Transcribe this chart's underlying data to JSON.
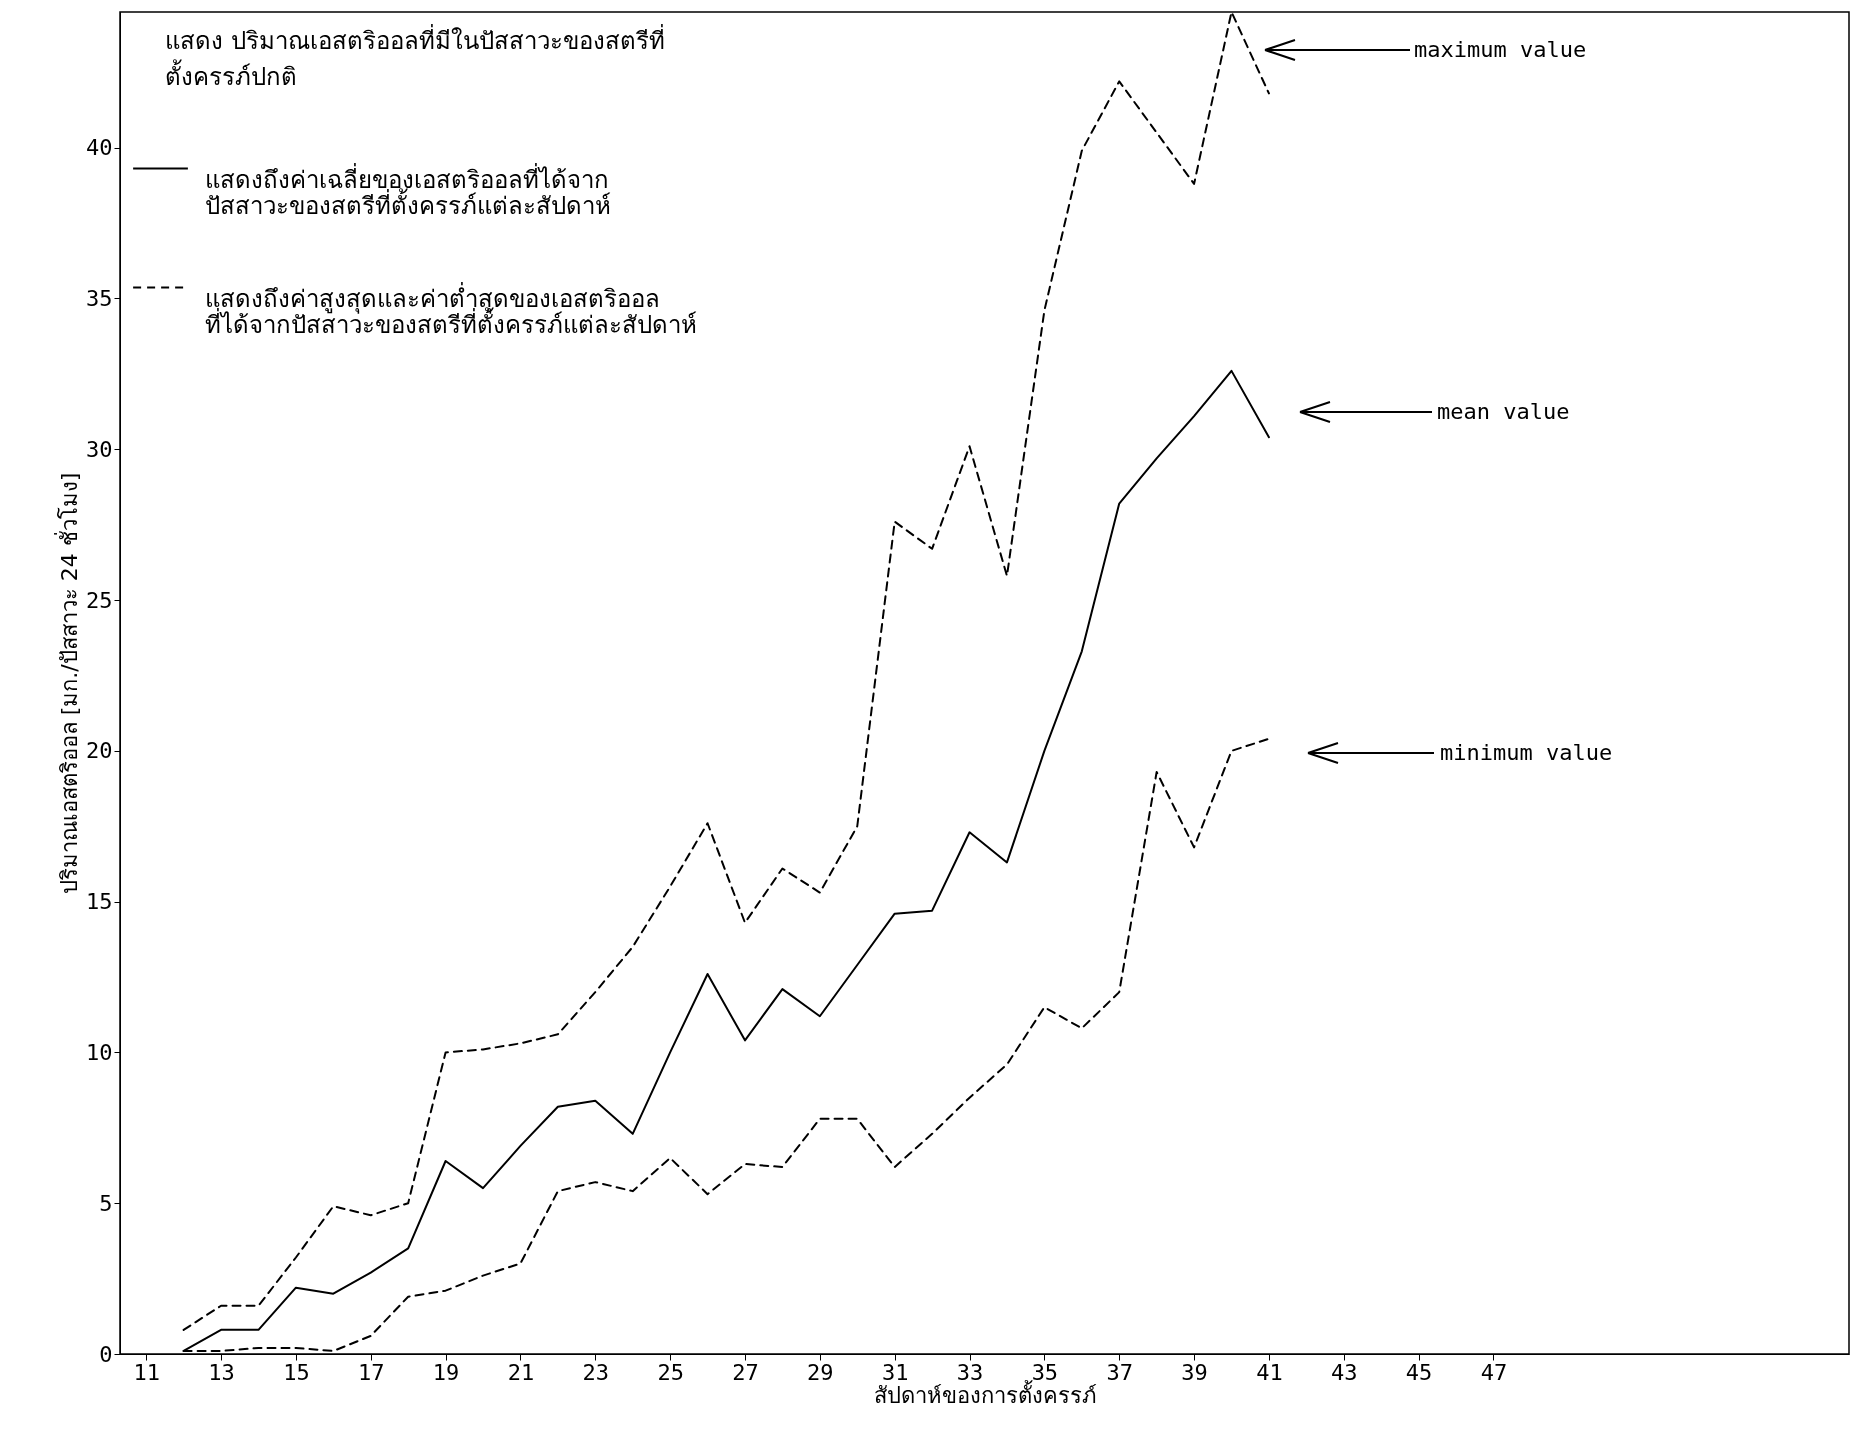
{
  "chart_data": {
    "type": "line",
    "title": "แสดง ปริมาณเอสตริออลที่มีในปัสสาวะของสตรีที่\nตั้งครรภ์ปกติ",
    "xlabel": "สัปดาห์ของการตั้งครรภ์",
    "ylabel": "ปริมาณเอสตริออล [มก./ปัสสาวะ 24 ชั่วโมง]",
    "x": [
      12,
      13,
      14,
      15,
      16,
      17,
      18,
      19,
      20,
      21,
      22,
      23,
      24,
      25,
      26,
      27,
      28,
      29,
      30,
      31,
      32,
      33,
      34,
      35,
      36,
      37,
      38,
      39,
      40,
      41
    ],
    "series": [
      {
        "name": "แสดงถึงค่าเฉลี่ยของเอสตริออลที่ได้จาก\nปัสสาวะของสตรีที่ตั้งครรภ์แต่ละสัปดาห์",
        "color": "#000000",
        "line_style": "solid",
        "values": [
          0.1,
          0.8,
          0.8,
          2.2,
          2.0,
          2.7,
          3.5,
          6.4,
          5.5,
          6.9,
          8.2,
          8.4,
          7.3,
          10,
          12.6,
          10.4,
          12.1,
          11.2,
          12.9,
          14.6,
          14.7,
          17.3,
          16.3,
          20,
          23.3,
          28.2,
          29.7,
          31.1,
          32.6,
          30.4
        ]
      },
      {
        "name": "แสดงถึงค่าสูงสุดและค่าต่ำสุดของเอสตริออล\nที่ได้จากปัสสาวะของสตรีที่ตั้งครรภ์แต่ละสัปดาห์",
        "color": "#000000",
        "line_style": "dashed",
        "values": [
          0.8,
          1.6,
          1.6,
          3.2,
          4.9,
          4.6,
          5.0,
          10.0,
          10.1,
          10.3,
          10.6,
          12,
          13.5,
          15.5,
          17.6,
          14.3,
          16.1,
          15.3,
          17.5,
          27.6,
          26.7,
          30.1,
          25.8,
          34.6,
          39.9,
          42.2,
          40.5,
          38.8,
          44.5,
          41.8
        ]
      },
      {
        "color": "#000000",
        "line_style": "dashed",
        "values": [
          0.1,
          0.1,
          0.2,
          0.2,
          0.1,
          0.6,
          1.9,
          2.1,
          2.6,
          3.0,
          5.4,
          5.7,
          5.4,
          6.5,
          5.3,
          6.3,
          6.2,
          7.8,
          7.8,
          6.2,
          7.3,
          8.5,
          9.6,
          11.5,
          10.8,
          12,
          19.3,
          16.8,
          20,
          20.4
        ]
      }
    ],
    "xlim": [
      10.3,
      56.5
    ],
    "xticks": [
      11,
      13,
      15,
      17,
      19,
      21,
      23,
      25,
      27,
      29,
      31,
      33,
      35,
      37,
      39,
      41,
      43,
      45,
      47
    ],
    "ylim": [
      0,
      44.5
    ],
    "yticks": [
      0,
      5,
      10,
      15,
      20,
      25,
      30,
      35,
      40
    ],
    "grid": false,
    "legend": "top left",
    "annotations": [
      "maximum value",
      "mean value",
      "minimum value"
    ]
  }
}
